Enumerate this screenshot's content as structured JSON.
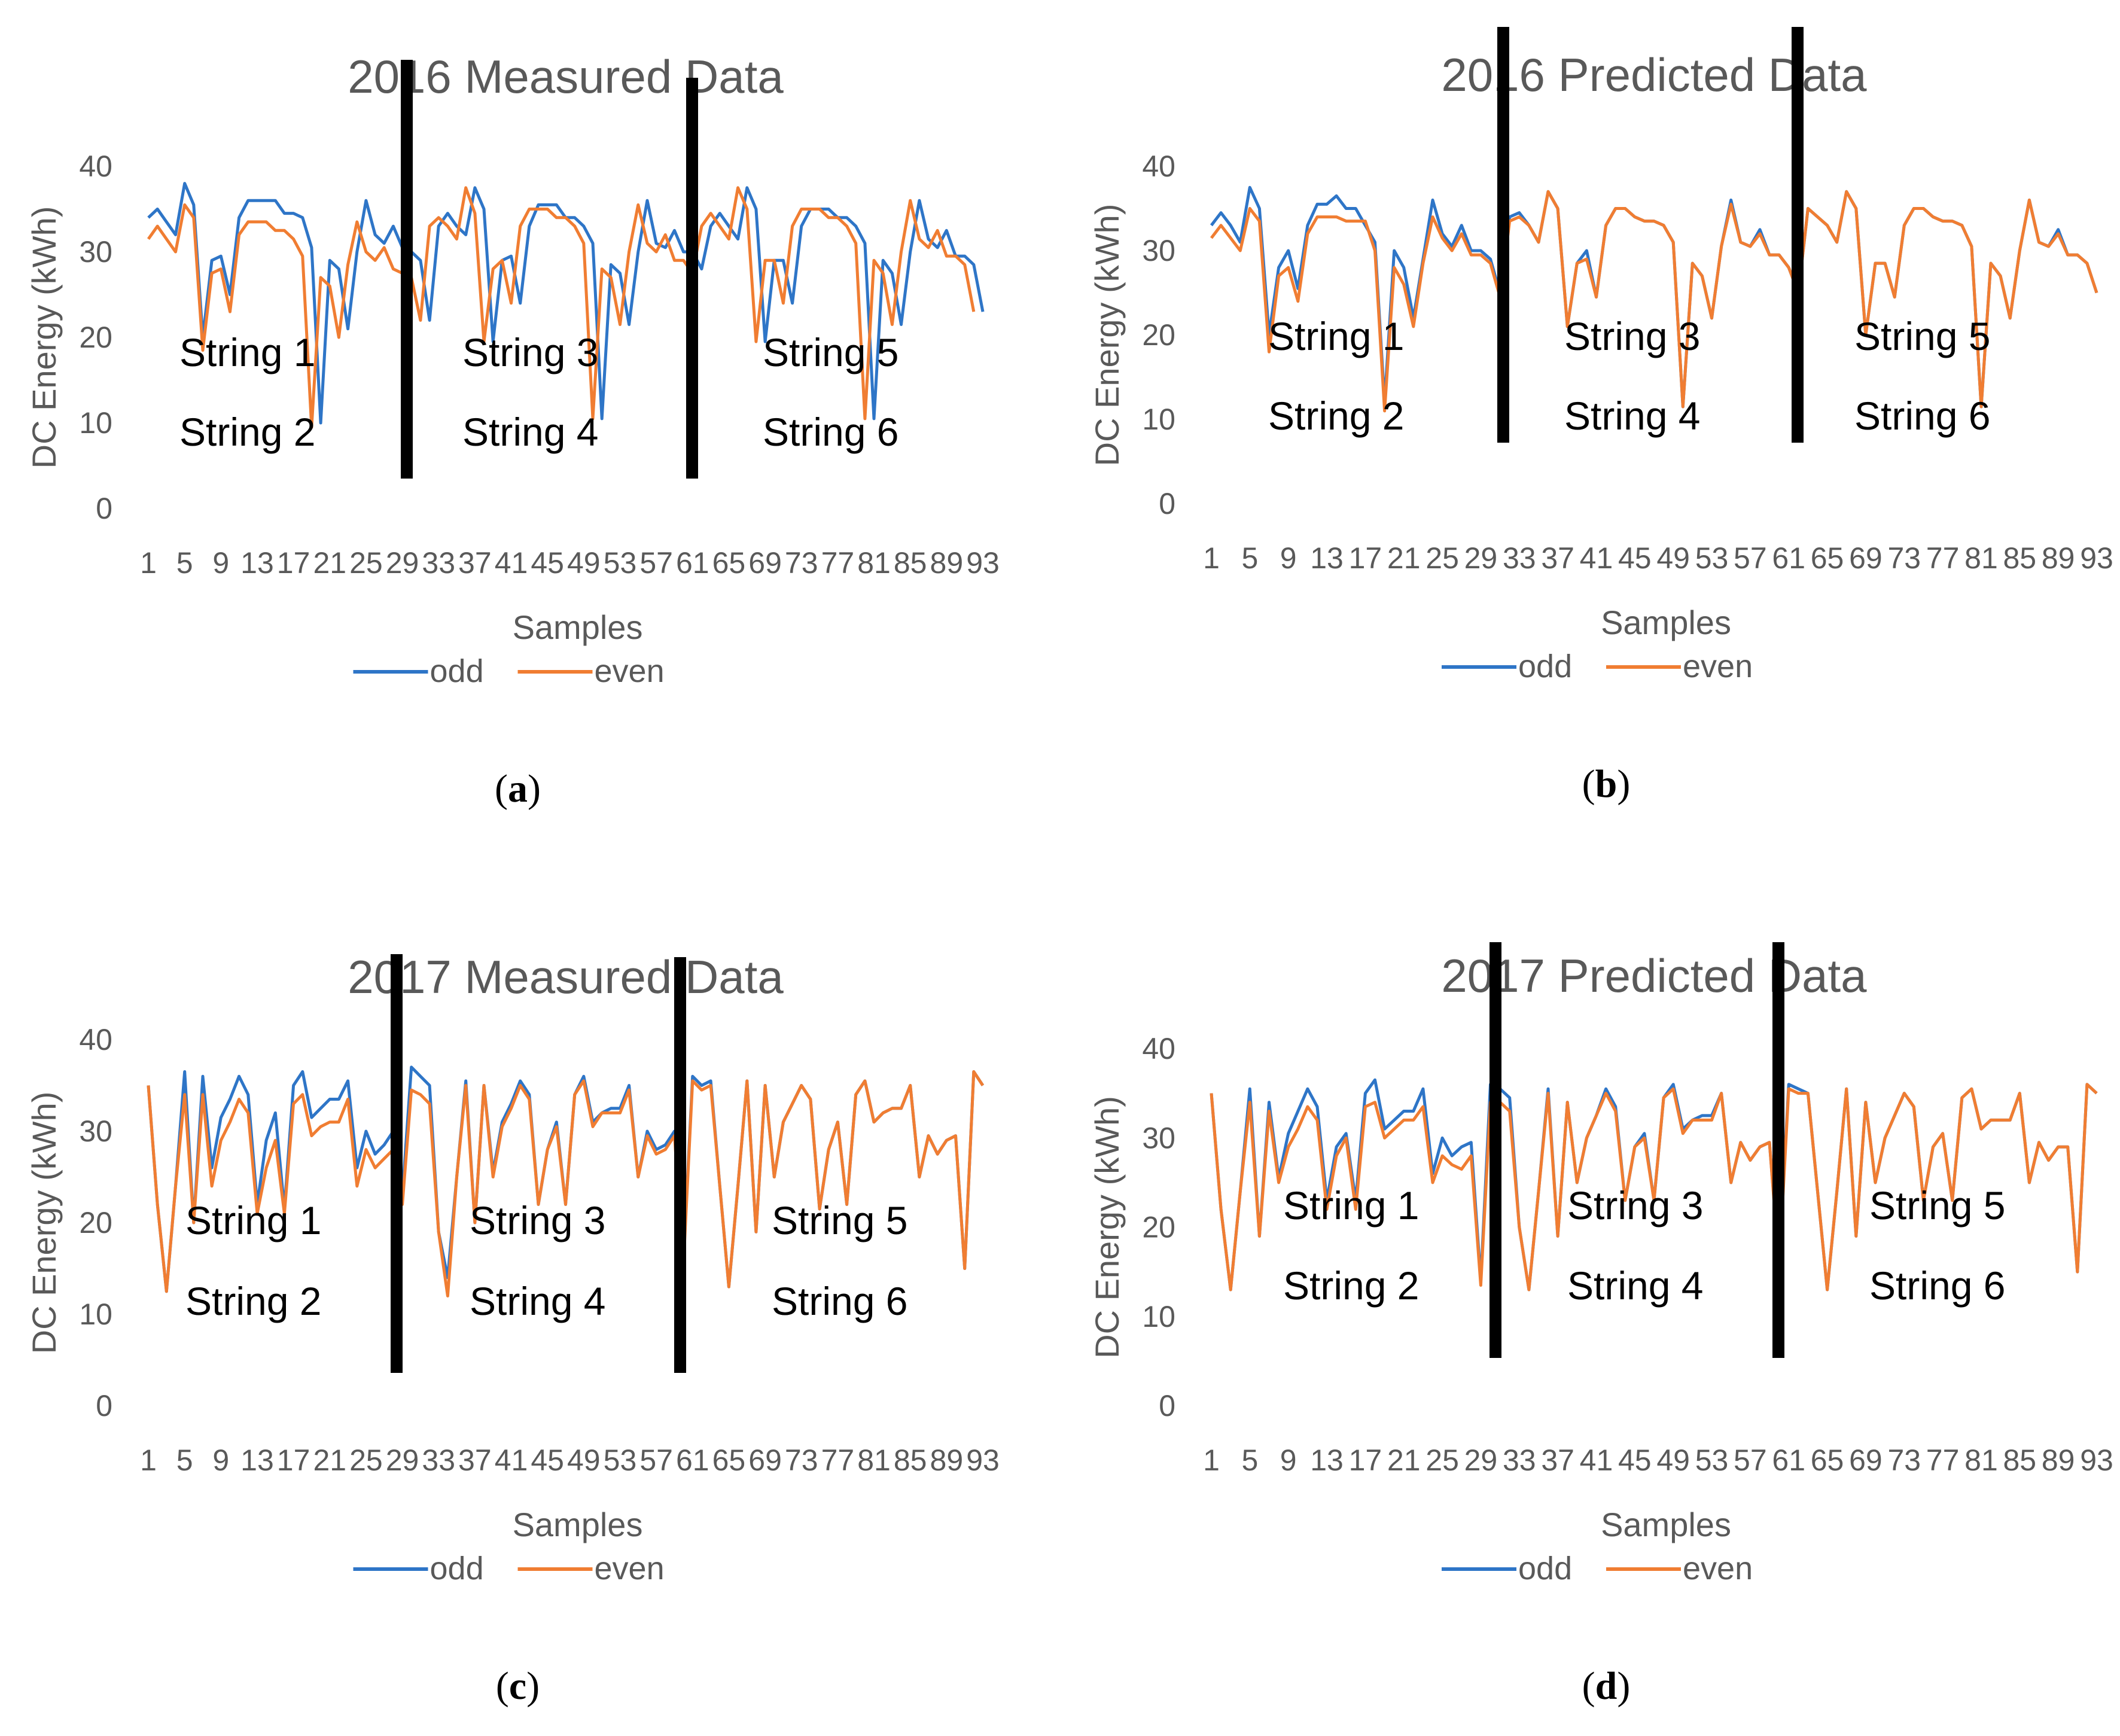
{
  "colors": {
    "odd": "#2e75c7",
    "even": "#f07d32",
    "divider": "#000000",
    "text": "#595959"
  },
  "chart_data": [
    {
      "type": "line",
      "panel": "a",
      "caption": {
        "open": "(",
        "letter": "a",
        "close": ")"
      },
      "title": "2016 Measured Data",
      "xlabel": "Samples",
      "ylabel": "DC Energy (kWh)",
      "ylim": [
        0,
        40
      ],
      "yticks": [
        "0",
        "10",
        "20",
        "30",
        "40"
      ],
      "xtick_labels": [
        "1",
        "5",
        "9",
        "13",
        "17",
        "21",
        "25",
        "29",
        "33",
        "37",
        "41",
        "45",
        "49",
        "53",
        "57",
        "61",
        "65",
        "69",
        "73",
        "77",
        "81",
        "85",
        "89",
        "93"
      ],
      "string_labels": [
        "String 1",
        "String 2",
        "String 3",
        "String 4",
        "String 5",
        "String 6"
      ],
      "legend": [
        "odd",
        "even"
      ],
      "dividers_after_sample": [
        29,
        61
      ],
      "series": [
        {
          "name": "odd",
          "values": [
            34,
            35,
            33.5,
            32,
            38,
            35.5,
            20,
            29,
            29.5,
            25,
            34,
            36,
            36,
            36,
            36,
            34.5,
            34.5,
            34,
            30.5,
            10,
            29,
            28,
            21,
            30,
            36,
            32,
            31,
            33,
            30.5,
            30,
            29,
            22,
            33,
            34.5,
            33,
            32,
            37.5,
            35,
            19.5,
            29,
            29.5,
            24,
            33,
            35.5,
            35.5,
            35.5,
            34,
            34,
            33,
            31,
            10.5,
            28.5,
            27.5,
            21.5,
            30,
            36,
            31,
            30.5,
            32.5,
            30,
            30,
            28,
            33,
            34.5,
            33,
            31.5,
            37.5,
            35,
            19.5,
            29,
            29,
            24,
            33,
            35,
            35,
            35,
            34,
            34,
            33,
            31,
            10.5,
            29,
            27.5,
            21.5,
            30,
            36,
            31.5,
            30.5,
            32.5,
            29.5,
            29.5,
            28.5,
            23
          ]
        },
        {
          "name": "even",
          "values": [
            31.5,
            33,
            31.5,
            30,
            35.5,
            34,
            18.5,
            27.5,
            28,
            23,
            32,
            33.5,
            33.5,
            33.5,
            32.5,
            32.5,
            31.5,
            29.5,
            9.5,
            27,
            26,
            20,
            28.5,
            33.5,
            30,
            29,
            30.5,
            28,
            27.5,
            27,
            22,
            33,
            34,
            33,
            31.5,
            37.5,
            34.5,
            19.5,
            28,
            29,
            24,
            33,
            35,
            35,
            35,
            34,
            34,
            33,
            31,
            10.5,
            28,
            27,
            21.5,
            30,
            35.5,
            31,
            30,
            32,
            29,
            29,
            27.5,
            33,
            34.5,
            33,
            31.5,
            37.5,
            35,
            19.5,
            29,
            29,
            24,
            33,
            35,
            35,
            35,
            34,
            34,
            33,
            31,
            10.5,
            29,
            27.5,
            21.5,
            30,
            36,
            31.5,
            30.5,
            32.5,
            29.5,
            29.5,
            28.5,
            23
          ]
        }
      ]
    },
    {
      "type": "line",
      "panel": "b",
      "caption": {
        "open": "(",
        "letter": "b",
        "close": ")"
      },
      "title": "2016 Predicted Data",
      "xlabel": "Samples",
      "ylabel": "DC Energy (kWh)",
      "ylim": [
        0,
        40
      ],
      "yticks": [
        "0",
        "10",
        "20",
        "30",
        "40"
      ],
      "xtick_labels": [
        "1",
        "5",
        "9",
        "13",
        "17",
        "21",
        "25",
        "29",
        "33",
        "37",
        "41",
        "45",
        "49",
        "53",
        "57",
        "61",
        "65",
        "69",
        "73",
        "77",
        "81",
        "85",
        "89",
        "93"
      ],
      "string_labels": [
        "String 1",
        "String 2",
        "String 3",
        "String 4",
        "String 5",
        "String 6"
      ],
      "legend": [
        "odd",
        "even"
      ],
      "dividers_after_sample": [
        29,
        61
      ],
      "series": [
        {
          "name": "odd",
          "values": [
            33,
            34.5,
            33,
            31,
            37.5,
            35,
            20,
            28,
            30,
            25.5,
            33,
            35.5,
            35.5,
            36.5,
            35,
            35,
            33,
            31,
            12,
            30,
            28,
            22,
            29,
            36,
            32,
            30.5,
            33,
            30,
            30,
            29,
            25,
            34,
            34.5,
            33,
            31,
            37,
            35,
            21,
            28.5,
            30,
            24.5,
            33,
            35,
            35,
            34,
            33.5,
            33.5,
            33,
            31,
            11.5,
            28.5,
            27,
            22,
            30.5,
            36,
            31,
            30.5,
            32.5,
            29.5,
            29.5,
            28,
            25,
            35,
            34,
            33,
            31,
            37,
            35,
            20,
            28.5,
            28.5,
            24.5,
            33,
            35,
            35,
            34,
            33.5,
            33.5,
            33,
            30.5,
            11.5,
            28.5,
            27,
            22,
            30,
            36,
            31,
            30.5,
            32.5,
            29.5,
            29.5,
            28.5,
            25
          ]
        },
        {
          "name": "even",
          "values": [
            31.5,
            33,
            31.5,
            30,
            35,
            33.5,
            18,
            27,
            28,
            24,
            32,
            34,
            34,
            34,
            33.5,
            33.5,
            33.5,
            30,
            11,
            28,
            26,
            21,
            28.5,
            34,
            31.5,
            30,
            32,
            29.5,
            29.5,
            28.5,
            24.5,
            33.5,
            34,
            33,
            31,
            37,
            35,
            21,
            28.5,
            29,
            24.5,
            33,
            35,
            35,
            34,
            33.5,
            33.5,
            33,
            31,
            11.5,
            28.5,
            27,
            22,
            30.5,
            35.5,
            31,
            30.5,
            32,
            29.5,
            29.5,
            28,
            25,
            35,
            34,
            33,
            31,
            37,
            35,
            20,
            28.5,
            28.5,
            24.5,
            33,
            35,
            35,
            34,
            33.5,
            33.5,
            33,
            30.5,
            11.5,
            28.5,
            27,
            22,
            30,
            36,
            31,
            30.5,
            32,
            29.5,
            29.5,
            28.5,
            25
          ]
        }
      ]
    },
    {
      "type": "line",
      "panel": "c",
      "caption": {
        "open": "(",
        "letter": "c",
        "close": ")"
      },
      "title": "2017 Measured Data",
      "xlabel": "Samples",
      "ylabel": "DC Energy (kWh)",
      "ylim": [
        0,
        40
      ],
      "yticks": [
        "0",
        "10",
        "20",
        "30",
        "40"
      ],
      "xtick_labels": [
        "1",
        "5",
        "9",
        "13",
        "17",
        "21",
        "25",
        "29",
        "33",
        "37",
        "41",
        "45",
        "49",
        "53",
        "57",
        "61",
        "65",
        "69",
        "73",
        "77",
        "81",
        "85",
        "89",
        "93"
      ],
      "string_labels": [
        "String 1",
        "String 2",
        "String 3",
        "String 4",
        "String 5",
        "String 6"
      ],
      "legend": [
        "odd",
        "even"
      ],
      "dividers_after_sample": [
        29,
        61
      ],
      "series": [
        {
          "name": "odd",
          "values": [
            35,
            22,
            12.5,
            24,
            36.5,
            20,
            36,
            26,
            31.5,
            33.5,
            36,
            34,
            22,
            29,
            32,
            21.5,
            35,
            36.5,
            31.5,
            32.5,
            33.5,
            33.5,
            35.5,
            26,
            30,
            27.5,
            28.5,
            30,
            23,
            37,
            36,
            35,
            19,
            14,
            25,
            35.5,
            20,
            35,
            25.5,
            31,
            33,
            35.5,
            34,
            22,
            28,
            31,
            22,
            34,
            36,
            31,
            32,
            32.5,
            32.5,
            35,
            25,
            30,
            28,
            28.5,
            30,
            16,
            36,
            35,
            35.5,
            24,
            13,
            24,
            35.5,
            19,
            35,
            25,
            31,
            33,
            35,
            33.5,
            21.5,
            28,
            31,
            22,
            34,
            35.5,
            31,
            32,
            32.5,
            32.5,
            35,
            25,
            29.5,
            27.5,
            29,
            29.5,
            15,
            36.5,
            35
          ]
        },
        {
          "name": "even",
          "values": [
            35,
            22,
            12.5,
            24,
            34,
            20,
            34,
            24,
            29,
            31,
            33.5,
            32,
            21,
            26,
            29,
            21,
            33,
            34,
            29.5,
            30.5,
            31,
            31,
            33.5,
            24,
            28,
            26,
            27,
            28,
            22,
            34.5,
            34,
            33,
            19,
            12,
            25,
            35,
            20,
            35,
            25,
            30.5,
            32.5,
            35,
            33.5,
            22,
            28,
            30.5,
            22,
            34,
            35.5,
            30.5,
            32,
            32,
            32,
            34.5,
            25,
            29.5,
            27.5,
            28,
            29.5,
            15.5,
            35.5,
            34.5,
            35,
            24,
            13,
            24,
            35.5,
            19,
            35,
            25,
            31,
            33,
            35,
            33.5,
            21.5,
            28,
            31,
            22,
            34,
            35.5,
            31,
            32,
            32.5,
            32.5,
            35,
            25,
            29.5,
            27.5,
            29,
            29.5,
            15,
            36.5,
            35
          ]
        }
      ]
    },
    {
      "type": "line",
      "panel": "d",
      "caption": {
        "open": "(",
        "letter": "d",
        "close": ")"
      },
      "title": "2017 Predicted Data",
      "xlabel": "Samples",
      "ylabel": "DC Energy (kWh)",
      "ylim": [
        0,
        40
      ],
      "yticks": [
        "0",
        "10",
        "20",
        "30",
        "40"
      ],
      "xtick_labels": [
        "1",
        "5",
        "9",
        "13",
        "17",
        "21",
        "25",
        "29",
        "33",
        "37",
        "41",
        "45",
        "49",
        "53",
        "57",
        "61",
        "65",
        "69",
        "73",
        "77",
        "81",
        "85",
        "89",
        "93"
      ],
      "string_labels": [
        "String 1",
        "String 2",
        "String 3",
        "String 4",
        "String 5",
        "String 6"
      ],
      "legend": [
        "odd",
        "even"
      ],
      "dividers_after_sample": [
        29,
        61
      ],
      "series": [
        {
          "name": "odd",
          "values": [
            35,
            22,
            13,
            24,
            35.5,
            19,
            34,
            25.5,
            30.5,
            33,
            35.5,
            33.5,
            23,
            29,
            30.5,
            23,
            35,
            36.5,
            31,
            32,
            33,
            33,
            35.5,
            26,
            30,
            28,
            29,
            29.5,
            14,
            36,
            35.5,
            34.5,
            20,
            13,
            24,
            35.5,
            19,
            34,
            25,
            30,
            32.5,
            35.5,
            33.5,
            23,
            29,
            30.5,
            23,
            34.5,
            36,
            31,
            32,
            32.5,
            32.5,
            35,
            25,
            29.5,
            27.5,
            29,
            29.5,
            16,
            36,
            35.5,
            35,
            24,
            13,
            24,
            35.5,
            19,
            34,
            25,
            30,
            32.5,
            35,
            33.5,
            23,
            29,
            30.5,
            23,
            34.5,
            35.5,
            31,
            32,
            32,
            32,
            35,
            25,
            29.5,
            27.5,
            29,
            29,
            15,
            36,
            35
          ]
        },
        {
          "name": "even",
          "values": [
            35,
            22,
            13,
            24,
            34,
            19,
            33,
            25,
            29,
            31,
            33.5,
            32,
            22,
            28,
            30,
            22,
            33.5,
            34,
            30,
            31,
            32,
            32,
            33.5,
            25,
            28,
            27,
            26.5,
            28,
            13.5,
            34,
            34,
            33,
            20,
            13,
            24,
            35,
            19,
            34,
            25,
            30,
            32.5,
            35,
            33,
            23,
            29,
            30,
            23,
            34.5,
            35.5,
            30.5,
            32,
            32,
            32,
            35,
            25,
            29.5,
            27.5,
            29,
            29.5,
            15.5,
            35.5,
            35,
            35,
            24,
            13,
            24,
            35.5,
            19,
            34,
            25,
            30,
            32.5,
            35,
            33.5,
            23,
            29,
            30.5,
            23,
            34.5,
            35.5,
            31,
            32,
            32,
            32,
            35,
            25,
            29.5,
            27.5,
            29,
            29,
            15,
            36,
            35
          ]
        }
      ]
    }
  ]
}
